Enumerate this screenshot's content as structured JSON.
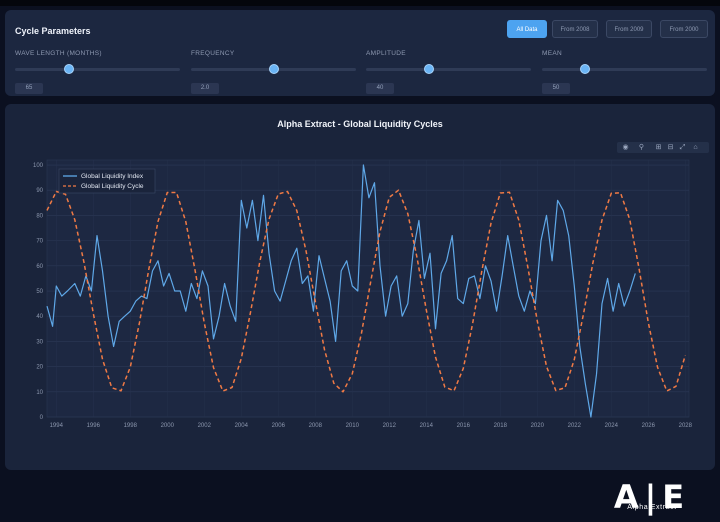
{
  "params_panel": {
    "title": "Cycle Parameters",
    "buttons": [
      {
        "label": "All Data",
        "active": true
      },
      {
        "label": "From 2008",
        "active": false
      },
      {
        "label": "From 2009",
        "active": false
      },
      {
        "label": "From 2000",
        "active": false
      }
    ],
    "sliders": [
      {
        "label": "WAVE LENGTH (MONTHS)",
        "value": "65",
        "level": 0.33
      },
      {
        "label": "FREQUENCY",
        "value": "2.0",
        "level": 0.5
      },
      {
        "label": "AMPLITUDE",
        "value": "40",
        "level": 0.38
      },
      {
        "label": "MEAN",
        "value": "50",
        "level": 0.26
      }
    ]
  },
  "modebar": {
    "icons": [
      "camera-icon",
      "zoom-icon",
      "zoom-in-icon",
      "zoom-out-icon",
      "autoscale-icon",
      "home-icon"
    ]
  },
  "logo": {
    "mark": "AE",
    "text": "Alpha Extract"
  },
  "colors": {
    "index_line": "#5fa8e8",
    "cycle_line": "#f07a45",
    "accent": "#4da3f0"
  },
  "chart_data": {
    "type": "line",
    "title": "Alpha Extract - Global Liquidity Cycles",
    "xlabel": "",
    "ylabel": "",
    "xlim": [
      1993.5,
      2028.2
    ],
    "ylim": [
      0,
      102
    ],
    "grid": true,
    "legend_placement": "top-left",
    "x_ticks": [
      "1994",
      "1996",
      "1998",
      "2000",
      "2002",
      "2004",
      "2006",
      "2008",
      "2010",
      "2012",
      "2014",
      "2016",
      "2018",
      "2020",
      "2022",
      "2024",
      "2026",
      "2028"
    ],
    "y_ticks": [
      "0",
      "10",
      "20",
      "30",
      "40",
      "50",
      "60",
      "70",
      "80",
      "90",
      "100"
    ],
    "series": [
      {
        "name": "Global Liquidity Index",
        "style": "solid",
        "x": [
          1993.5,
          1993.8,
          1994.0,
          1994.3,
          1994.6,
          1995.0,
          1995.3,
          1995.6,
          1995.9,
          1996.2,
          1996.5,
          1996.8,
          1997.1,
          1997.4,
          1997.7,
          1998.0,
          1998.3,
          1998.6,
          1998.9,
          1999.2,
          1999.5,
          1999.8,
          2000.1,
          2000.4,
          2000.7,
          2001.0,
          2001.3,
          2001.6,
          2001.9,
          2002.2,
          2002.5,
          2002.8,
          2003.1,
          2003.4,
          2003.7,
          2004.0,
          2004.3,
          2004.6,
          2004.9,
          2005.2,
          2005.5,
          2005.8,
          2006.1,
          2006.4,
          2006.7,
          2007.0,
          2007.3,
          2007.6,
          2007.9,
          2008.2,
          2008.5,
          2008.8,
          2009.1,
          2009.4,
          2009.7,
          2010.0,
          2010.3,
          2010.6,
          2010.9,
          2011.2,
          2011.5,
          2011.8,
          2012.1,
          2012.4,
          2012.7,
          2013.0,
          2013.3,
          2013.6,
          2013.9,
          2014.2,
          2014.5,
          2014.8,
          2015.1,
          2015.4,
          2015.7,
          2016.0,
          2016.3,
          2016.6,
          2016.9,
          2017.2,
          2017.5,
          2017.8,
          2018.1,
          2018.4,
          2018.7,
          2019.0,
          2019.3,
          2019.6,
          2019.9,
          2020.2,
          2020.5,
          2020.8,
          2021.1,
          2021.4,
          2021.7,
          2022.0,
          2022.3,
          2022.6,
          2022.9,
          2023.2,
          2023.5,
          2023.8,
          2024.1,
          2024.4,
          2024.7,
          2025.0,
          2025.3
        ],
        "values": [
          44,
          36,
          52,
          48,
          50,
          53,
          48,
          56,
          50,
          72,
          58,
          40,
          28,
          38,
          40,
          42,
          46,
          48,
          47,
          58,
          62,
          52,
          57,
          50,
          50,
          42,
          53,
          47,
          58,
          52,
          31,
          40,
          53,
          44,
          38,
          86,
          75,
          86,
          70,
          88,
          65,
          50,
          46,
          54,
          62,
          67,
          53,
          56,
          42,
          64,
          55,
          46,
          30,
          58,
          62,
          52,
          50,
          100,
          87,
          93,
          60,
          40,
          52,
          56,
          40,
          45,
          66,
          78,
          55,
          65,
          35,
          57,
          62,
          72,
          47,
          45,
          55,
          56,
          47,
          60,
          54,
          42,
          56,
          72,
          60,
          48,
          42,
          50,
          45,
          70,
          80,
          62,
          86,
          82,
          72,
          52,
          28,
          13,
          0,
          17,
          45,
          55,
          42,
          53,
          44,
          50,
          57
        ]
      },
      {
        "name": "Global Liquidity Cycle",
        "style": "dashed",
        "x": [
          1993.5,
          1994.0,
          1994.5,
          1995.0,
          1995.5,
          1996.0,
          1996.5,
          1997.0,
          1997.5,
          1998.0,
          1998.5,
          1999.0,
          1999.5,
          2000.0,
          2000.5,
          2001.0,
          2001.5,
          2002.0,
          2002.5,
          2003.0,
          2003.5,
          2004.0,
          2004.5,
          2005.0,
          2005.5,
          2006.0,
          2006.5,
          2007.0,
          2007.5,
          2008.0,
          2008.5,
          2009.0,
          2009.5,
          2010.0,
          2010.5,
          2011.0,
          2011.5,
          2012.0,
          2012.5,
          2013.0,
          2013.5,
          2014.0,
          2014.5,
          2015.0,
          2015.5,
          2016.0,
          2016.5,
          2017.0,
          2017.5,
          2018.0,
          2018.5,
          2019.0,
          2019.5,
          2020.0,
          2020.5,
          2021.0,
          2021.5,
          2022.0,
          2022.5,
          2023.0,
          2023.5,
          2024.0,
          2024.5,
          2025.0,
          2025.5,
          2026.0,
          2026.5,
          2027.0,
          2027.5,
          2028.0
        ],
        "values": [
          82.0,
          89.5,
          88.4,
          78.3,
          61.3,
          41.1,
          22.9,
          11.6,
          10.4,
          19.8,
          37.5,
          58.6,
          77.6,
          89.1,
          89.1,
          77.5,
          58.4,
          37.3,
          19.6,
          10.3,
          11.7,
          23.2,
          41.5,
          61.6,
          78.5,
          88.5,
          89.5,
          81.9,
          66.0,
          45.9,
          26.7,
          13.4,
          10.0,
          17.2,
          33.3,
          53.9,
          73.6,
          87.2,
          90.0,
          80.7,
          63.3,
          42.5,
          23.8,
          11.9,
          10.4,
          19.3,
          36.8,
          57.9,
          76.9,
          88.9,
          89.2,
          78.1,
          59.1,
          38.1,
          20.1,
          10.5,
          11.6,
          22.8,
          40.9,
          61.0,
          78.2,
          88.8,
          89.0,
          78.3,
          59.0,
          37.5,
          19.8,
          10.3,
          12.2,
          24.5
        ]
      }
    ]
  }
}
